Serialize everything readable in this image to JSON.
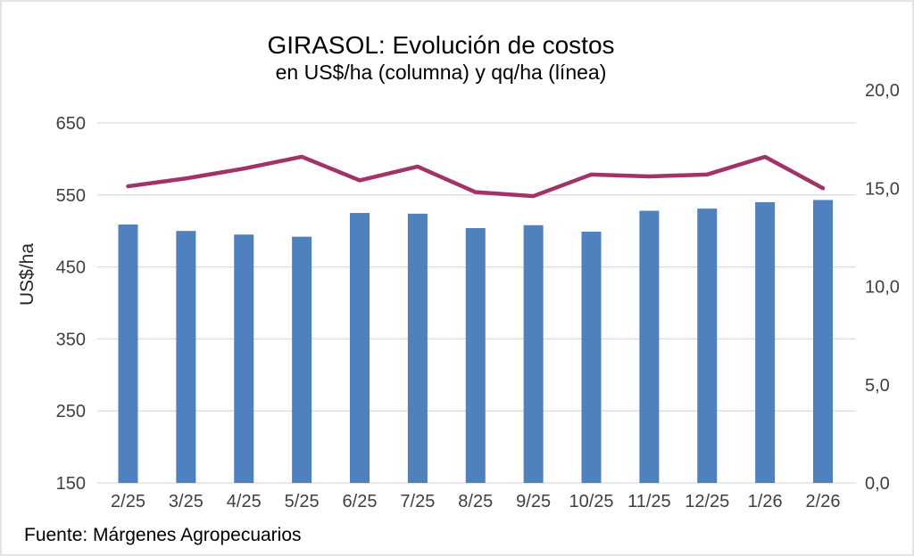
{
  "chart_data": {
    "type": "combo-bar-line",
    "title": "GIRASOL: Evolución de costos",
    "subtitle": "en US$/ha (columna) y qq/ha (línea)",
    "source_note": "Fuente: Márgenes Agropecuarios",
    "categories": [
      "2/25",
      "3/25",
      "4/25",
      "5/25",
      "6/25",
      "7/25",
      "8/25",
      "9/25",
      "10/25",
      "11/25",
      "12/25",
      "1/26",
      "2/26"
    ],
    "series": [
      {
        "name": "US$/ha (columna)",
        "type": "bar",
        "axis": "left",
        "color": "#4E81BD",
        "values": [
          509,
          500,
          495,
          492,
          525,
          524,
          504,
          508,
          499,
          528,
          531,
          540,
          543
        ]
      },
      {
        "name": "qq/ha (línea)",
        "type": "line",
        "axis": "right",
        "color": "#A13368",
        "values": [
          15.1,
          15.5,
          16.0,
          16.6,
          15.4,
          16.1,
          14.8,
          14.6,
          15.7,
          15.6,
          15.7,
          16.6,
          15.0
        ]
      }
    ],
    "left_axis": {
      "title": "US$/ha",
      "min": 150,
      "max": 650,
      "tick_interval": 100,
      "tick_labels": [
        "650",
        "550",
        "450",
        "350",
        "250",
        "150"
      ],
      "tick_values": [
        650,
        550,
        450,
        350,
        250,
        150
      ]
    },
    "right_axis": {
      "min": 0.0,
      "max": 20.0,
      "tick_interval": 5.0,
      "tick_labels": [
        "20,0",
        "15,0",
        "10,0",
        "5,0",
        "0,0"
      ],
      "tick_values": [
        20,
        15,
        10,
        5,
        0
      ]
    },
    "grid": true,
    "legend_position": "none",
    "text_color": "#404040",
    "gridline_color": "#dcdcdc",
    "background_color": "#ffffff"
  }
}
